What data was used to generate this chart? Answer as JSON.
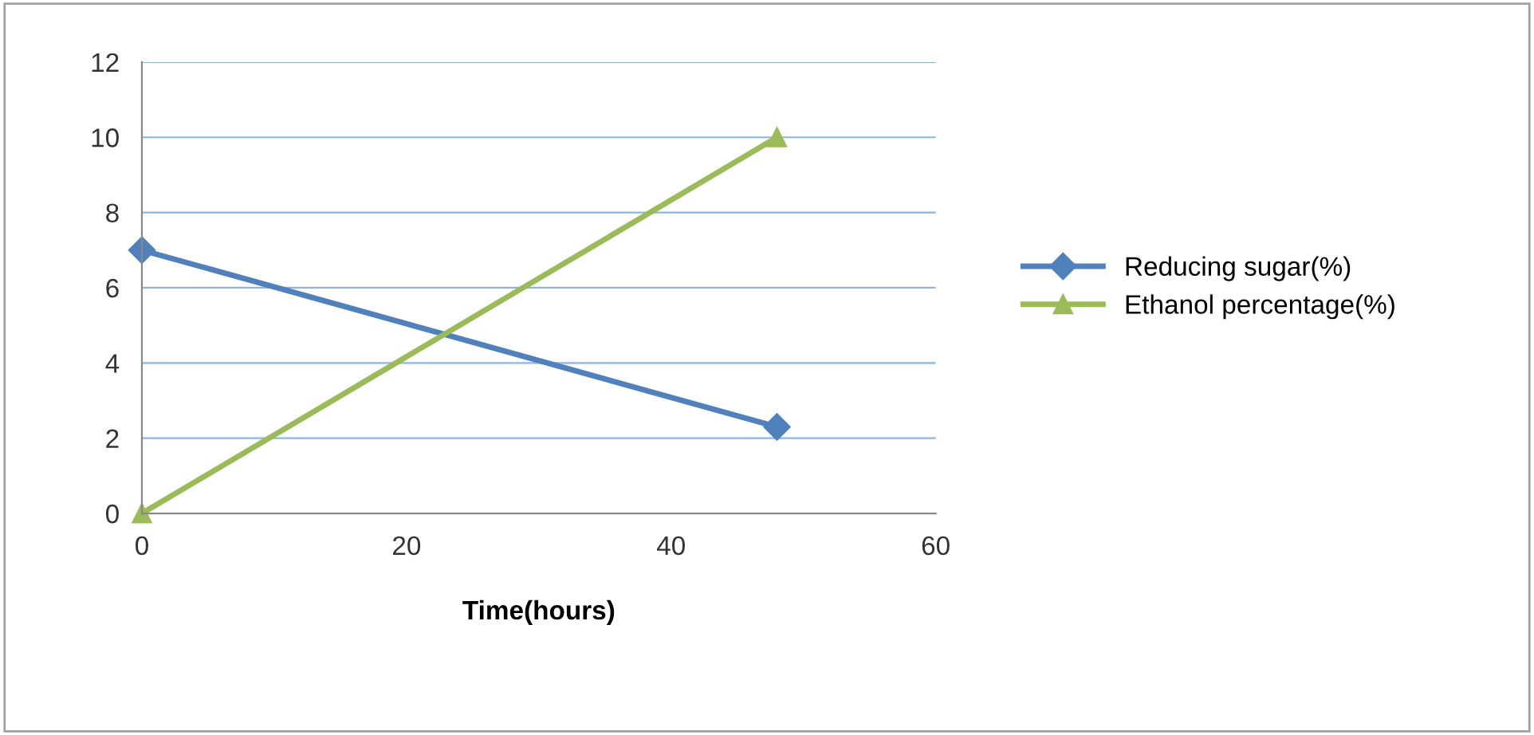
{
  "chart_data": {
    "type": "line",
    "xlabel": "Time(hours)",
    "x": [
      0,
      48
    ],
    "series": [
      {
        "name": "Reducing sugar(%)",
        "color": "#4f81bd",
        "values": [
          7,
          2.3
        ],
        "marker": "diamond"
      },
      {
        "name": "Ethanol percentage(%)",
        "color": "#9bbb59",
        "values": [
          0,
          10
        ],
        "marker": "triangle"
      }
    ],
    "xlim": [
      0,
      60
    ],
    "xticks": [
      0,
      20,
      40,
      60
    ],
    "ylim": [
      0,
      12
    ],
    "yticks": [
      0,
      2,
      4,
      6,
      8,
      10,
      12
    ],
    "grid": "y",
    "legend": "right",
    "line_style": "solid"
  }
}
